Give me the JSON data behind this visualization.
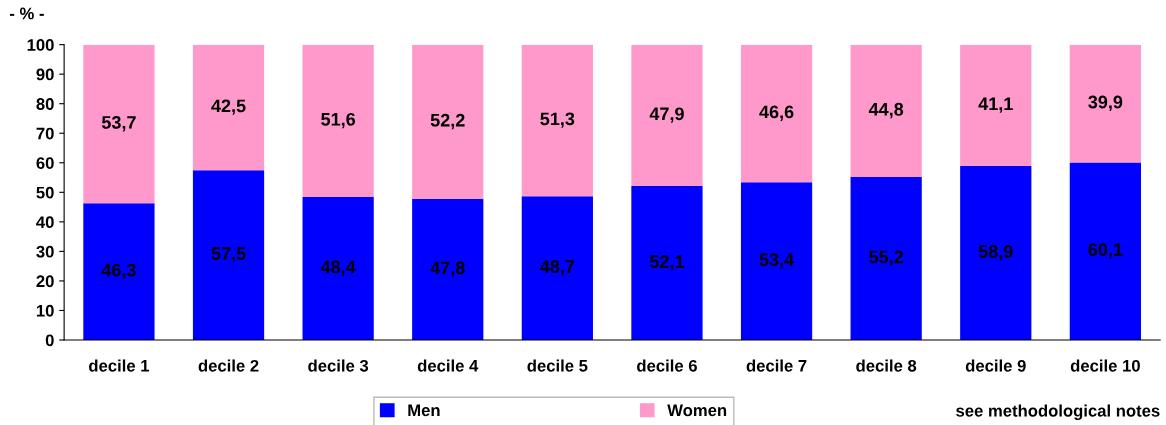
{
  "chart_data": {
    "type": "bar",
    "stacked": true,
    "title": "- % -",
    "categories": [
      "decile 1",
      "decile 2",
      "decile 3",
      "decile 4",
      "decile 5",
      "decile 6",
      "decile 7",
      "decile 8",
      "decile 9",
      "decile 10"
    ],
    "series": [
      {
        "name": "Men",
        "color": "#0000ff",
        "values": [
          46.3,
          57.5,
          48.4,
          47.8,
          48.7,
          52.1,
          53.4,
          55.2,
          58.9,
          60.1
        ],
        "value_labels": [
          "46,3",
          "57,5",
          "48,4",
          "47,8",
          "48,7",
          "52,1",
          "53,4",
          "55,2",
          "58,9",
          "60,1"
        ]
      },
      {
        "name": "Women",
        "color": "#ff99cc",
        "values": [
          53.7,
          42.5,
          51.6,
          52.2,
          51.3,
          47.9,
          46.6,
          44.8,
          41.1,
          39.9
        ],
        "value_labels": [
          "53,7",
          "42,5",
          "51,6",
          "52,2",
          "51,3",
          "47,9",
          "46,6",
          "44,8",
          "41,1",
          "39,9"
        ]
      }
    ],
    "ylim": [
      0,
      100
    ],
    "yticks": [
      0,
      10,
      20,
      30,
      40,
      50,
      60,
      70,
      80,
      90,
      100
    ],
    "grid": false,
    "legend": "bottom",
    "annotations": [
      "see methodological notes"
    ]
  }
}
